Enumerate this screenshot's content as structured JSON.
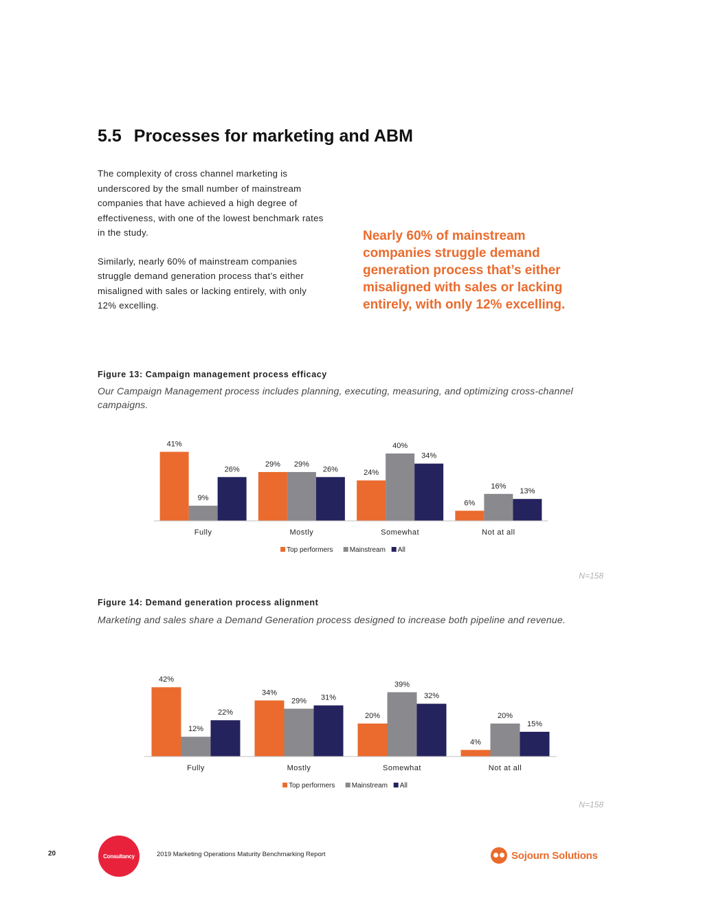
{
  "section": {
    "number": "5.5",
    "title": "Processes for marketing and ABM"
  },
  "body": {
    "paragraph1": "The complexity of cross channel marketing is underscored by the small number of mainstream companies that have achieved a high degree of effectiveness, with one of the lowest benchmark rates in the study.",
    "paragraph2": "Similarly, nearly 60% of mainstream companies struggle demand generation process that’s either misaligned with sales or lacking entirely, with only 12% excelling."
  },
  "pull_quote": "Nearly 60% of mainstream companies struggle demand generation process that’s either misaligned with sales or lacking entirely, with only 12% excelling.",
  "figure13": {
    "title": "Figure 13: Campaign management process efficacy",
    "subtitle": "Our Campaign Management process includes planning, executing, measuring, and optimizing cross-channel campaigns.",
    "note": "N=158"
  },
  "figure14": {
    "title": "Figure 14: Demand generation process alignment",
    "subtitle": "Marketing and sales share a Demand Generation process designed to increase both pipeline and revenue.",
    "note": "N=158"
  },
  "chart_data": [
    {
      "type": "bar",
      "title": "Figure 13: Campaign management process efficacy",
      "categories": [
        "Fully",
        "Mostly",
        "Somewhat",
        "Not at all"
      ],
      "series": [
        {
          "name": "Top performers",
          "values": [
            41,
            29,
            24,
            6
          ]
        },
        {
          "name": "Mainstream",
          "values": [
            9,
            29,
            40,
            16
          ]
        },
        {
          "name": "All",
          "values": [
            26,
            26,
            34,
            13
          ]
        }
      ],
      "value_suffix": "%",
      "xlabel": "",
      "ylabel": "",
      "ylim": [
        0,
        45
      ],
      "legend": "bottom",
      "grid": false
    },
    {
      "type": "bar",
      "title": "Figure 14: Demand generation process alignment",
      "categories": [
        "Fully",
        "Mostly",
        "Somewhat",
        "Not at all"
      ],
      "series": [
        {
          "name": "Top performers",
          "values": [
            42,
            34,
            20,
            4
          ]
        },
        {
          "name": "Mainstream",
          "values": [
            12,
            29,
            39,
            20
          ]
        },
        {
          "name": "All",
          "values": [
            22,
            31,
            32,
            15
          ]
        }
      ],
      "value_suffix": "%",
      "xlabel": "",
      "ylabel": "",
      "ylim": [
        0,
        45
      ],
      "legend": "bottom",
      "grid": false
    }
  ],
  "colors": {
    "top_performers": "#ea6b2d",
    "mainstream": "#8a898e",
    "all": "#25235e",
    "accent": "#ea6b2d",
    "badge": "#e9223c"
  },
  "footer": {
    "page_number": "20",
    "badge_label": "Consultancy",
    "report_title": "2019 Marketing Operations Maturity Benchmarking Report",
    "brand": "Sojourn Solutions",
    "brand_icon": "sojourn-logo-icon"
  }
}
